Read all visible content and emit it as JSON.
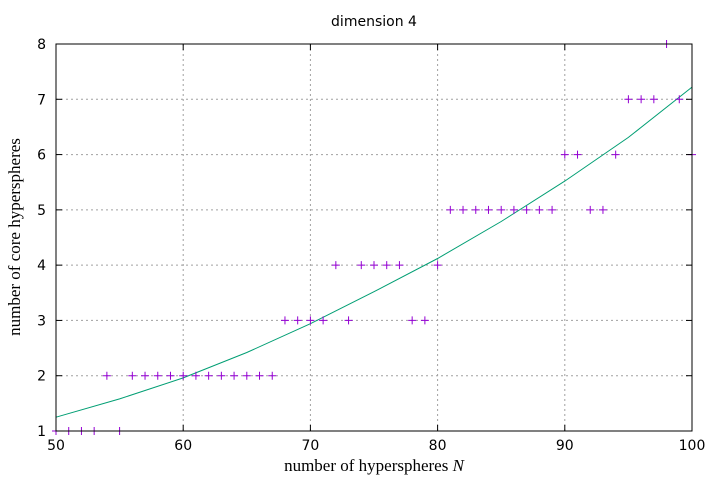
{
  "chart_data": {
    "type": "scatter",
    "title": "dimension 4",
    "xlabel": "number of hyperspheres ",
    "xlabel_var": "N",
    "ylabel": "number of core hyperspheres",
    "xlim": [
      50,
      100
    ],
    "ylim": [
      1,
      8
    ],
    "xticks": [
      50,
      60,
      70,
      80,
      90,
      100
    ],
    "yticks": [
      1,
      2,
      3,
      4,
      5,
      6,
      7,
      8
    ],
    "grid": true,
    "series": [
      {
        "marker": "plus",
        "color": "#9400d3",
        "x": [
          50,
          51,
          52,
          53,
          54,
          55,
          56,
          57,
          58,
          59,
          60,
          61,
          62,
          63,
          64,
          65,
          66,
          67,
          68,
          69,
          70,
          71,
          72,
          73,
          74,
          75,
          76,
          77,
          78,
          79,
          80,
          81,
          82,
          83,
          84,
          85,
          86,
          87,
          88,
          89,
          90,
          91,
          92,
          93,
          94,
          95,
          96,
          97,
          98,
          99,
          100
        ],
        "y": [
          1,
          1,
          1,
          1,
          2,
          1,
          2,
          2,
          2,
          2,
          2,
          2,
          2,
          2,
          2,
          2,
          2,
          2,
          3,
          3,
          3,
          3,
          4,
          3,
          4,
          4,
          4,
          4,
          3,
          3,
          4,
          5,
          5,
          5,
          5,
          5,
          5,
          5,
          5,
          5,
          6,
          6,
          5,
          5,
          6,
          7,
          7,
          7,
          8,
          7,
          6
        ]
      },
      {
        "type": "line",
        "color": "#009e73",
        "x": [
          50,
          55,
          60,
          65,
          70,
          75,
          80,
          85,
          90,
          95,
          100
        ],
        "y": [
          1.25,
          1.58,
          1.96,
          2.42,
          2.94,
          3.52,
          4.12,
          4.79,
          5.52,
          6.31,
          7.22
        ]
      }
    ]
  }
}
